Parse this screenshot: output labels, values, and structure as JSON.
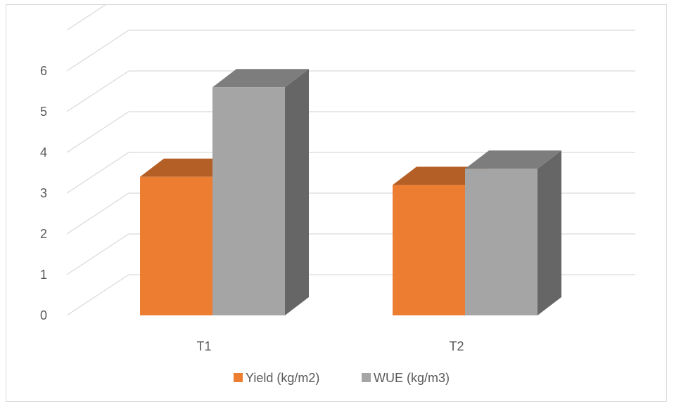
{
  "chart_data": {
    "type": "bar",
    "subtype": "3d-clustered-column",
    "title": "",
    "xlabel": "",
    "ylabel": "",
    "categories": [
      "T1",
      "T2"
    ],
    "series": [
      {
        "name": "Yield (kg/m2)",
        "values": [
          3.4,
          3.2
        ],
        "color": "#ED7D31"
      },
      {
        "name": "WUE (kg/m3)",
        "values": [
          5.6,
          3.6
        ],
        "color": "#A5A5A5"
      }
    ],
    "ylim": [
      0,
      6
    ],
    "yticks": [
      0,
      1,
      2,
      3,
      4,
      5,
      6
    ],
    "grid": true,
    "legend_position": "bottom",
    "colors": {
      "gridline": "#d9d9d9",
      "text": "#595959",
      "border": "#d9d9d9"
    }
  }
}
